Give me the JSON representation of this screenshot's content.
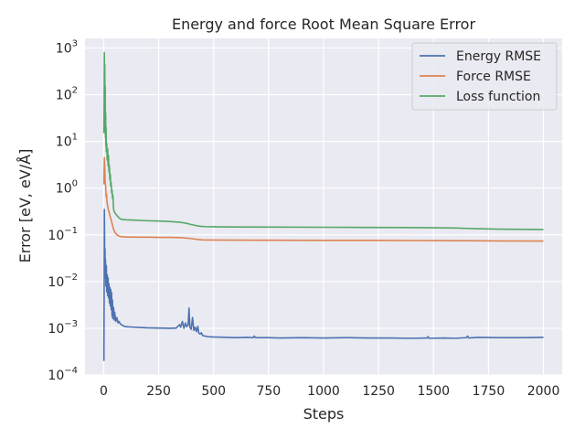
{
  "chart_data": {
    "type": "line",
    "title": "Energy and force Root Mean Square Error",
    "xlabel": "Steps",
    "ylabel": "Error [eV, eV/Å]",
    "yscale": "log",
    "xlim": [
      -85,
      2085
    ],
    "ylim": [
      0.0001,
      1600
    ],
    "grid": true,
    "legend_position": "top-right",
    "background_color": "#eaeaf2",
    "grid_color": "#ffffff",
    "x_ticks": [
      0,
      250,
      500,
      750,
      1000,
      1250,
      1500,
      1750,
      2000
    ],
    "x_tick_labels": [
      "0",
      "250",
      "500",
      "750",
      "1000",
      "1250",
      "1500",
      "1750",
      "2000"
    ],
    "y_ticks": [
      0.0001,
      0.001,
      0.01,
      0.1,
      1,
      10,
      100,
      1000
    ],
    "y_tick_labels": [
      {
        "base": "10",
        "exp": "−4"
      },
      {
        "base": "10",
        "exp": "−3"
      },
      {
        "base": "10",
        "exp": "−2"
      },
      {
        "base": "10",
        "exp": "−1"
      },
      {
        "base": "10",
        "exp": "0"
      },
      {
        "base": "10",
        "exp": "1"
      },
      {
        "base": "10",
        "exp": "2"
      },
      {
        "base": "10",
        "exp": "3"
      }
    ],
    "series": [
      {
        "name": "Energy RMSE",
        "color": "#4c72b0",
        "points": [
          [
            1,
            0.0002
          ],
          [
            2,
            0.005
          ],
          [
            3,
            0.35
          ],
          [
            4,
            0.08
          ],
          [
            5,
            0.02
          ],
          [
            6,
            0.05
          ],
          [
            7,
            0.012
          ],
          [
            8,
            0.03
          ],
          [
            10,
            0.008
          ],
          [
            12,
            0.022
          ],
          [
            14,
            0.006
          ],
          [
            16,
            0.014
          ],
          [
            18,
            0.005
          ],
          [
            20,
            0.012
          ],
          [
            22,
            0.0045
          ],
          [
            24,
            0.009
          ],
          [
            26,
            0.0035
          ],
          [
            28,
            0.0075
          ],
          [
            30,
            0.003
          ],
          [
            32,
            0.0068
          ],
          [
            34,
            0.0025
          ],
          [
            36,
            0.0058
          ],
          [
            38,
            0.0018
          ],
          [
            40,
            0.004
          ],
          [
            42,
            0.0016
          ],
          [
            45,
            0.0028
          ],
          [
            48,
            0.0015
          ],
          [
            50,
            0.0022
          ],
          [
            55,
            0.0014
          ],
          [
            60,
            0.0017
          ],
          [
            65,
            0.0013
          ],
          [
            70,
            0.0014
          ],
          [
            75,
            0.00125
          ],
          [
            80,
            0.0012
          ],
          [
            90,
            0.00112
          ],
          [
            100,
            0.00108
          ],
          [
            130,
            0.00106
          ],
          [
            160,
            0.00104
          ],
          [
            200,
            0.00102
          ],
          [
            250,
            0.00101
          ],
          [
            300,
            0.001
          ],
          [
            330,
            0.00101
          ],
          [
            345,
            0.0012
          ],
          [
            350,
            0.00105
          ],
          [
            358,
            0.0014
          ],
          [
            365,
            0.001
          ],
          [
            372,
            0.0013
          ],
          [
            378,
            0.00108
          ],
          [
            384,
            0.00118
          ],
          [
            388,
            0.0027
          ],
          [
            392,
            0.00105
          ],
          [
            398,
            0.00095
          ],
          [
            404,
            0.0017
          ],
          [
            410,
            0.0009
          ],
          [
            416,
            0.00105
          ],
          [
            422,
            0.00085
          ],
          [
            428,
            0.0011
          ],
          [
            432,
            0.0008
          ],
          [
            438,
            0.00075
          ],
          [
            444,
            0.0008
          ],
          [
            450,
            0.0007
          ],
          [
            460,
            0.00068
          ],
          [
            475,
            0.00066
          ],
          [
            500,
            0.00065
          ],
          [
            550,
            0.00064
          ],
          [
            600,
            0.00063
          ],
          [
            650,
            0.00064
          ],
          [
            680,
            0.00063
          ],
          [
            685,
            0.00068
          ],
          [
            690,
            0.00063
          ],
          [
            750,
            0.00063
          ],
          [
            800,
            0.00062
          ],
          [
            900,
            0.00063
          ],
          [
            1000,
            0.00062
          ],
          [
            1100,
            0.00063
          ],
          [
            1200,
            0.00062
          ],
          [
            1300,
            0.00062
          ],
          [
            1400,
            0.00061
          ],
          [
            1470,
            0.00062
          ],
          [
            1475,
            0.00066
          ],
          [
            1480,
            0.00061
          ],
          [
            1550,
            0.00062
          ],
          [
            1600,
            0.00061
          ],
          [
            1650,
            0.00063
          ],
          [
            1655,
            0.00068
          ],
          [
            1660,
            0.00062
          ],
          [
            1700,
            0.00064
          ],
          [
            1800,
            0.00063
          ],
          [
            1900,
            0.00063
          ],
          [
            2000,
            0.00064
          ]
        ]
      },
      {
        "name": "Force RMSE",
        "color": "#dd8452",
        "points": [
          [
            1,
            1.2
          ],
          [
            3,
            4.5
          ],
          [
            5,
            2.5
          ],
          [
            7,
            1.3
          ],
          [
            9,
            1.1
          ],
          [
            11,
            0.65
          ],
          [
            13,
            0.75
          ],
          [
            15,
            0.5
          ],
          [
            18,
            0.42
          ],
          [
            21,
            0.35
          ],
          [
            25,
            0.3
          ],
          [
            30,
            0.24
          ],
          [
            35,
            0.2
          ],
          [
            40,
            0.16
          ],
          [
            45,
            0.13
          ],
          [
            50,
            0.115
          ],
          [
            60,
            0.1
          ],
          [
            70,
            0.094
          ],
          [
            80,
            0.091
          ],
          [
            100,
            0.09
          ],
          [
            150,
            0.089
          ],
          [
            200,
            0.089
          ],
          [
            250,
            0.088
          ],
          [
            300,
            0.088
          ],
          [
            350,
            0.087
          ],
          [
            400,
            0.083
          ],
          [
            430,
            0.079
          ],
          [
            450,
            0.078
          ],
          [
            500,
            0.0775
          ],
          [
            600,
            0.077
          ],
          [
            800,
            0.0765
          ],
          [
            1000,
            0.076
          ],
          [
            1200,
            0.076
          ],
          [
            1400,
            0.0755
          ],
          [
            1600,
            0.075
          ],
          [
            1800,
            0.074
          ],
          [
            2000,
            0.0735
          ]
        ]
      },
      {
        "name": "Loss function",
        "color": "#55a868",
        "points": [
          [
            1,
            15
          ],
          [
            2,
            60
          ],
          [
            3,
            800
          ],
          [
            4,
            40
          ],
          [
            5,
            450
          ],
          [
            6,
            25
          ],
          [
            7,
            150
          ],
          [
            8,
            12
          ],
          [
            9,
            40
          ],
          [
            10,
            8
          ],
          [
            11,
            20
          ],
          [
            12,
            6
          ],
          [
            14,
            9
          ],
          [
            16,
            4
          ],
          [
            18,
            7
          ],
          [
            20,
            3
          ],
          [
            22,
            5
          ],
          [
            24,
            2.2
          ],
          [
            26,
            3
          ],
          [
            28,
            1.5
          ],
          [
            30,
            2
          ],
          [
            32,
            1.1
          ],
          [
            34,
            1.3
          ],
          [
            36,
            0.8
          ],
          [
            38,
            0.9
          ],
          [
            40,
            0.6
          ],
          [
            42,
            0.7
          ],
          [
            45,
            0.35
          ],
          [
            50,
            0.3
          ],
          [
            60,
            0.26
          ],
          [
            70,
            0.23
          ],
          [
            80,
            0.215
          ],
          [
            100,
            0.21
          ],
          [
            150,
            0.205
          ],
          [
            200,
            0.2
          ],
          [
            250,
            0.197
          ],
          [
            300,
            0.193
          ],
          [
            350,
            0.185
          ],
          [
            380,
            0.175
          ],
          [
            400,
            0.165
          ],
          [
            420,
            0.158
          ],
          [
            440,
            0.152
          ],
          [
            460,
            0.15
          ],
          [
            500,
            0.149
          ],
          [
            600,
            0.147
          ],
          [
            800,
            0.146
          ],
          [
            1000,
            0.145
          ],
          [
            1200,
            0.144
          ],
          [
            1400,
            0.143
          ],
          [
            1600,
            0.14
          ],
          [
            1700,
            0.135
          ],
          [
            1800,
            0.132
          ],
          [
            2000,
            0.13
          ]
        ]
      }
    ]
  }
}
